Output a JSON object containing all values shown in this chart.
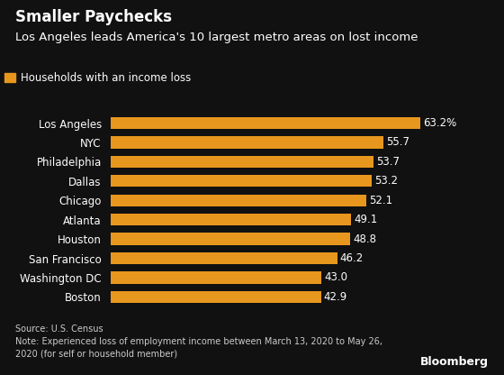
{
  "title": "Smaller Paychecks",
  "subtitle": "Los Angeles leads America's 10 largest metro areas on lost income",
  "legend_label": "Households with an income loss",
  "categories": [
    "Boston",
    "Washington DC",
    "San Francisco",
    "Houston",
    "Atlanta",
    "Chicago",
    "Dallas",
    "Philadelphia",
    "NYC",
    "Los Angeles"
  ],
  "values": [
    42.9,
    43.0,
    46.2,
    48.8,
    49.1,
    52.1,
    53.2,
    53.7,
    55.7,
    63.2
  ],
  "labels": [
    "42.9",
    "43.0",
    "46.2",
    "48.8",
    "49.1",
    "52.1",
    "53.2",
    "53.7",
    "55.7",
    "63.2%"
  ],
  "bar_color": "#E8971E",
  "background_color": "#111111",
  "text_color": "#ffffff",
  "source_text": "Source: U.S. Census\nNote: Experienced loss of employment income between March 13, 2020 to May 26,\n2020 (for self or household member)",
  "bloomberg_text": "Bloomberg",
  "xlim": [
    0,
    70
  ],
  "bar_height": 0.62,
  "title_fontsize": 12,
  "subtitle_fontsize": 9.5,
  "label_fontsize": 8.5,
  "tick_fontsize": 8.5,
  "source_fontsize": 7,
  "legend_fontsize": 8.5
}
